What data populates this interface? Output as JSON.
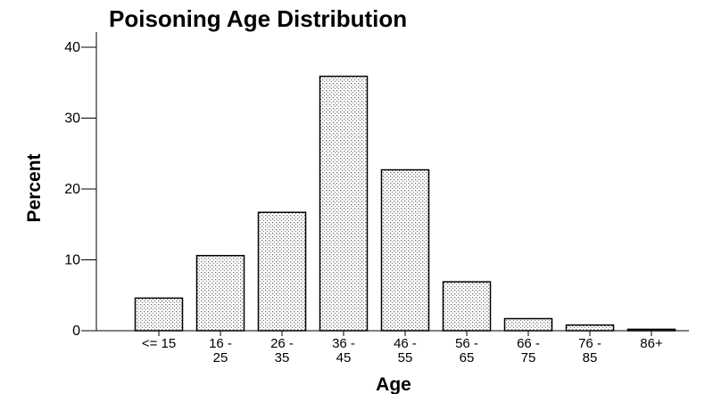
{
  "chart_data": {
    "type": "bar",
    "title": "Poisoning Age Distribution",
    "xlabel": "Age",
    "ylabel": "Percent",
    "categories": [
      [
        "<= 15"
      ],
      [
        "16 -",
        "25"
      ],
      [
        "26 -",
        "35"
      ],
      [
        "36 -",
        "45"
      ],
      [
        "46 -",
        "55"
      ],
      [
        "56 -",
        "65"
      ],
      [
        "66 -",
        "75"
      ],
      [
        "76 -",
        "85"
      ],
      [
        "86+"
      ]
    ],
    "values": [
      4.6,
      10.6,
      16.7,
      35.9,
      22.7,
      6.9,
      1.7,
      0.8,
      0.2
    ],
    "ylim": [
      0,
      40
    ],
    "yticks": [
      0,
      10,
      20,
      30,
      40
    ],
    "grid": false,
    "bar_fill": "dotted",
    "colors": {
      "bar_fill": "#ffffff",
      "bar_dots": "#707070",
      "bar_stroke": "#000000"
    }
  }
}
